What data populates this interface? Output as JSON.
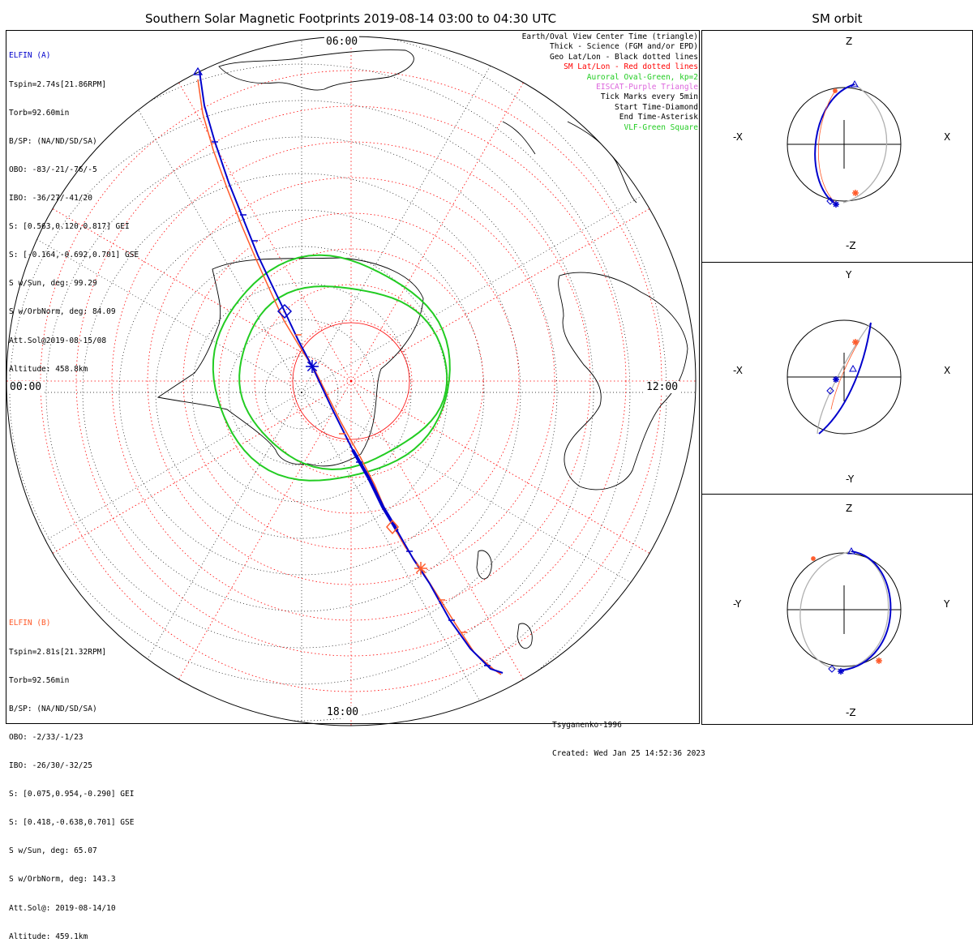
{
  "title": "Southern Solar Magnetic Footprints 2019-08-14 03:00 to 04:30 UTC",
  "side_title": "SM orbit",
  "hour_labels": {
    "top": "06:00",
    "left": "00:00",
    "right": "12:00",
    "bottom": "18:00"
  },
  "spacecraft_a": {
    "name": "ELFIN (A)",
    "color": "#0000cc",
    "lines": [
      "Tspin=2.74s[21.86RPM]",
      "Torb=92.60min",
      "B/SP: (NA/ND/SD/SA)",
      "OBO: -83/-21/-76/-5",
      "IBO: -36/27/-41/20",
      "S: [0.563,0.120,0.817] GEI",
      "S: [-0.164,-0.692,0.701] GSE",
      "S w/Sun, deg: 99.29",
      "S w/OrbNorm, deg: 84.09",
      "Att.Sol@2019-08-15/08",
      "Altitude: 458.8km"
    ]
  },
  "spacecraft_b": {
    "name": "ELFIN (B)",
    "color": "#ff5a2a",
    "lines": [
      "Tspin=2.81s[21.32RPM]",
      "Torb=92.56min",
      "B/SP: (NA/ND/SD/SA)",
      "OBO: -2/33/-1/23",
      "IBO: -26/30/-32/25",
      "S: [0.075,0.954,-0.290] GEI",
      "S: [0.418,-0.638,0.701] GSE",
      "S w/Sun, deg: 65.07",
      "S w/OrbNorm, deg: 143.3",
      "Att.Sol@: 2019-08-14/10",
      "Altitude: 459.1km"
    ]
  },
  "legend": [
    {
      "text": "Earth/Oval View Center Time (triangle)",
      "color": "#000000"
    },
    {
      "text": "Thick - Science (FGM and/or EPD)",
      "color": "#000000"
    },
    {
      "text": "Geo Lat/Lon - Black dotted lines",
      "color": "#000000"
    },
    {
      "text": "SM Lat/Lon - Red dotted lines",
      "color": "#ff0000"
    },
    {
      "text": "Auroral Oval-Green, kp=2",
      "color": "#22cc22"
    },
    {
      "text": "EISCAT-Purple Triangle",
      "color": "#dd66dd"
    },
    {
      "text": "Tick Marks every 5min",
      "color": "#000000"
    },
    {
      "text": "Start Time-Diamond",
      "color": "#000000"
    },
    {
      "text": "End Time-Asterisk",
      "color": "#000000"
    },
    {
      "text": "VLF-Green Square",
      "color": "#22cc22"
    }
  ],
  "credits": {
    "model": "Tsyganenko-1996",
    "created": "Created: Wed Jan 25 14:52:36 2023"
  },
  "orbit_panels": [
    {
      "h_neg": "-X",
      "h_pos": "X",
      "v_pos": "Z",
      "v_neg": "-Z"
    },
    {
      "h_neg": "-X",
      "h_pos": "X",
      "v_pos": "Y",
      "v_neg": "-Y"
    },
    {
      "h_neg": "-Y",
      "h_pos": "Y",
      "v_pos": "Z",
      "v_neg": "-Z"
    }
  ],
  "colors": {
    "geo_grid": "#000000",
    "sm_grid": "#ff0000",
    "oval": "#22cc22",
    "track_a": "#0000cc",
    "track_b": "#ff5a2a",
    "orbit_ghost": "#b0b0b0"
  },
  "chart_data": {
    "type": "scatter",
    "projection": "south polar stereographic",
    "auroral_oval": {
      "kp": 2
    },
    "tick_interval_min": 5,
    "start_marker": "diamond",
    "end_marker": "asterisk"
  }
}
